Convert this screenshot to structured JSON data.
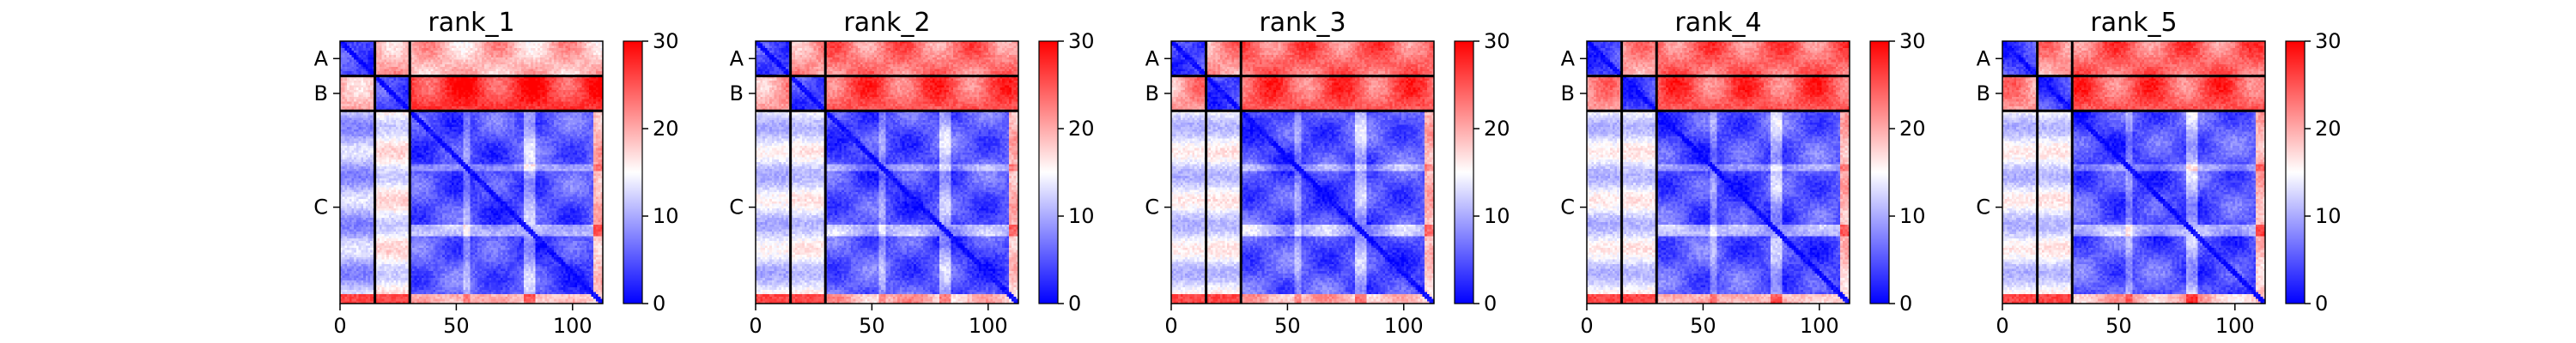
{
  "chart_data": {
    "type": "heatmap",
    "colormap": "bwr",
    "colormap_colors": [
      "#0000ff",
      "#ffffff",
      "#ff0000"
    ],
    "value_range": [
      0,
      30
    ],
    "colorbar_ticks": [
      "0",
      "10",
      "20",
      "30"
    ],
    "x_ticks": [
      "0",
      "50",
      "100"
    ],
    "x_range": [
      0,
      113
    ],
    "chain_labels": [
      "A",
      "B",
      "C"
    ],
    "chain_boundaries": [
      0,
      15,
      30,
      113
    ],
    "panels": [
      {
        "title": "rank_1",
        "inter_chain": {
          "A-B": 20,
          "A-C": 19,
          "B-C": 27
        },
        "intra_chain": {
          "A": 6,
          "B": 6,
          "C": 6
        }
      },
      {
        "title": "rank_2",
        "inter_chain": {
          "A-B": 21,
          "A-C": 23,
          "B-C": 25
        },
        "intra_chain": {
          "A": 6,
          "B": 6,
          "C": 6
        }
      },
      {
        "title": "rank_3",
        "inter_chain": {
          "A-B": 21,
          "A-C": 24,
          "B-C": 25
        },
        "intra_chain": {
          "A": 6,
          "B": 6,
          "C": 6
        }
      },
      {
        "title": "rank_4",
        "inter_chain": {
          "A-B": 21,
          "A-C": 24,
          "B-C": 25
        },
        "intra_chain": {
          "A": 6,
          "B": 6,
          "C": 6
        }
      },
      {
        "title": "rank_5",
        "inter_chain": {
          "A-B": 21,
          "A-C": 24,
          "B-C": 25
        },
        "intra_chain": {
          "A": 6,
          "B": 6,
          "C": 6
        }
      }
    ]
  }
}
